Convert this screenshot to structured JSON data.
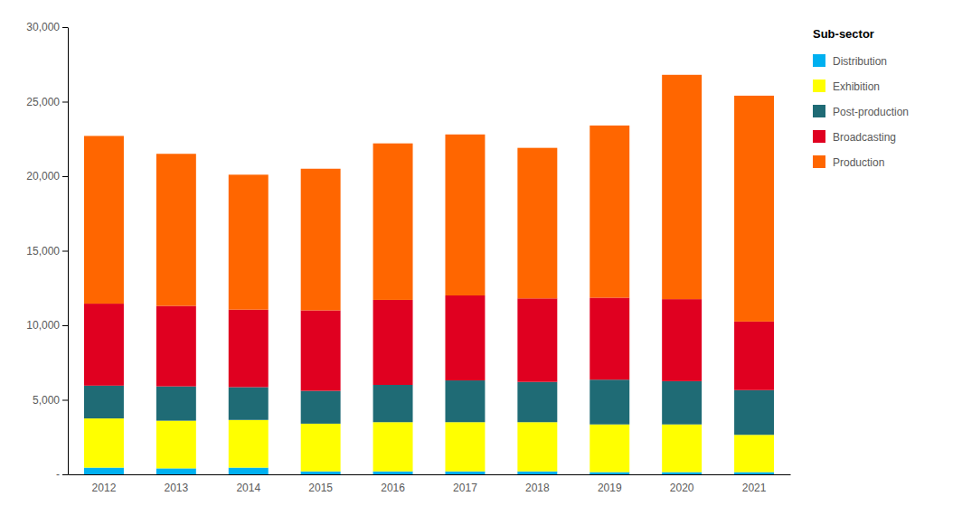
{
  "chart_data": {
    "type": "bar",
    "stacked": true,
    "categories": [
      "2012",
      "2013",
      "2014",
      "2015",
      "2016",
      "2017",
      "2018",
      "2019",
      "2020",
      "2021"
    ],
    "series": [
      {
        "name": "Distribution",
        "color": "#00B0F0",
        "values": [
          450,
          400,
          450,
          200,
          200,
          200,
          200,
          150,
          150,
          150
        ]
      },
      {
        "name": "Exhibition",
        "color": "#FFFF00",
        "values": [
          3300,
          3200,
          3200,
          3200,
          3300,
          3300,
          3300,
          3200,
          3200,
          2500
        ]
      },
      {
        "name": "Post-production",
        "color": "#1F6B75",
        "values": [
          2200,
          2300,
          2200,
          2200,
          2500,
          2800,
          2700,
          3000,
          2900,
          3000
        ]
      },
      {
        "name": "Broadcasting",
        "color": "#E00020",
        "values": [
          5500,
          5400,
          5200,
          5400,
          5700,
          5700,
          5600,
          5500,
          5500,
          4600
        ]
      },
      {
        "name": "Production",
        "color": "#FF6600",
        "values": [
          11250,
          10200,
          9050,
          9500,
          10500,
          10800,
          10100,
          11550,
          15050,
          15150
        ]
      }
    ],
    "ylim": [
      0,
      30000
    ],
    "yticks": [
      {
        "value": 0,
        "label": "-"
      },
      {
        "value": 5000,
        "label": "5,000"
      },
      {
        "value": 10000,
        "label": "10,000"
      },
      {
        "value": 15000,
        "label": "15,000"
      },
      {
        "value": 20000,
        "label": "20,000"
      },
      {
        "value": 25000,
        "label": "25,000"
      },
      {
        "value": 30000,
        "label": "30,000"
      }
    ],
    "legend_title": "Sub-sector",
    "legend": "right",
    "grid": false
  }
}
